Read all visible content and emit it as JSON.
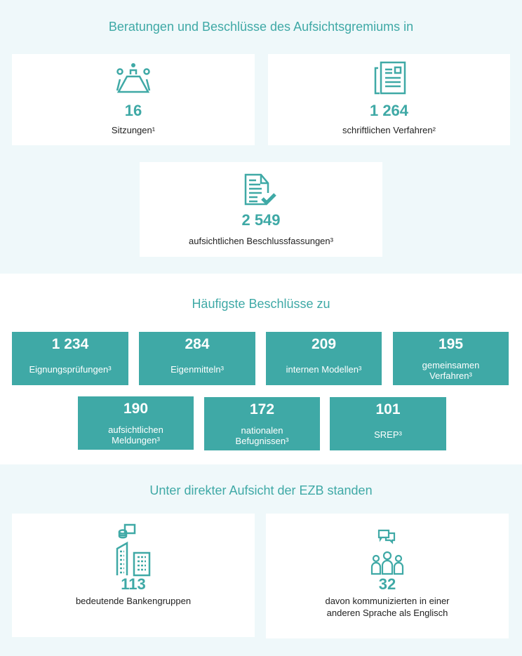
{
  "colors": {
    "accent": "#3fa9a6",
    "background": "#eff8fa"
  },
  "section1": {
    "title": "Beratungen und Beschlüsse des Aufsichtsgremiums in",
    "cards": [
      {
        "icon": "meeting-table-icon",
        "value": "16",
        "label": "Sitzungen¹"
      },
      {
        "icon": "newspaper-icon",
        "value": "1 264",
        "label": "schriftlichen Verfahren²"
      },
      {
        "icon": "document-check-icon",
        "value": "2 549",
        "label": "aufsichtlichen Beschlussfassungen³"
      }
    ]
  },
  "section2": {
    "title": "Häufigste Beschlüsse zu",
    "boxes": [
      {
        "value": "1 234",
        "label": "Eignungsprüfungen³"
      },
      {
        "value": "284",
        "label": "Eigenmitteln³"
      },
      {
        "value": "209",
        "label": "internen Modellen³"
      },
      {
        "value": "195",
        "label": "gemeinsamen Verfahren³"
      },
      {
        "value": "190",
        "label": "aufsichtlichen Meldungen³"
      },
      {
        "value": "172",
        "label": "nationalen Befugnissen³"
      },
      {
        "value": "101",
        "label": "SREP³"
      }
    ]
  },
  "section3": {
    "title": "Unter direkter Aufsicht der EZB standen",
    "cards": [
      {
        "icon": "bank-buildings-icon",
        "value": "113",
        "label": "bedeutende Bankengruppen"
      },
      {
        "icon": "people-speech-icon",
        "value": "32",
        "label": "davon kommunizierten in einer anderen Sprache als Englisch"
      }
    ]
  }
}
